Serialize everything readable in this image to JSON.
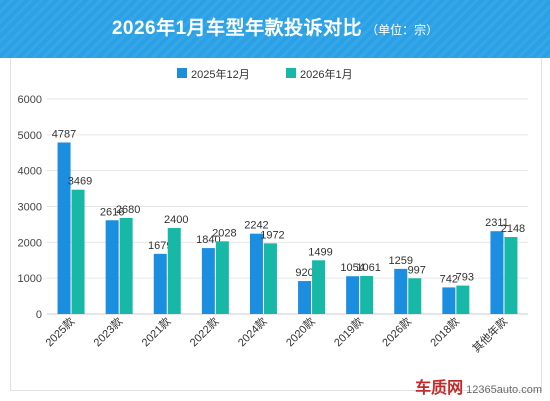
{
  "header": {
    "title": "2026年1月车型年款投诉对比",
    "unit": "（单位：宗）"
  },
  "watermark": {
    "logo": "车质网",
    "site": "12365auto.com"
  },
  "chart_data": {
    "type": "bar",
    "categories": [
      "2025款",
      "2023款",
      "2021款",
      "2022款",
      "2024款",
      "2020款",
      "2019款",
      "2026款",
      "2018款",
      "其他年款"
    ],
    "series": [
      {
        "name": "2025年12月",
        "color": "#1b8ee0",
        "values": [
          4787,
          2616,
          1679,
          1840,
          2242,
          920,
          1054,
          1259,
          742,
          2311
        ]
      },
      {
        "name": "2026年1月",
        "color": "#17b8a6",
        "values": [
          3469,
          2680,
          2400,
          2028,
          1972,
          1499,
          1061,
          997,
          793,
          2148
        ]
      }
    ],
    "y_ticks": [
      "6000",
      "5000",
      "4000",
      "3000",
      "2000",
      "1000",
      "0"
    ],
    "ylim": [
      0,
      6000
    ],
    "grid": true,
    "legend": "top-center"
  }
}
